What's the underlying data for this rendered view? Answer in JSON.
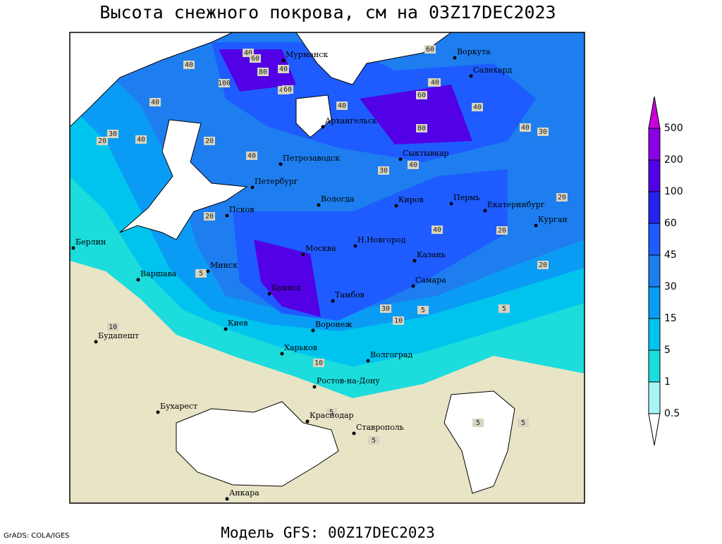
{
  "header": {
    "title": "Высота снежного покрова, см на 03Z17DEC2023"
  },
  "footer": {
    "model": "Модель GFS: 00Z17DEC2023",
    "credit": "GrADS: COLA/IGES"
  },
  "legend": {
    "labels": [
      0.5,
      1,
      5,
      15,
      30,
      45,
      60,
      100,
      200,
      500
    ],
    "colors": [
      "#ffffff",
      "#a8f4f4",
      "#1cdcdc",
      "#00c4ee",
      "#0a9cf4",
      "#1e7ef0",
      "#1e5cff",
      "#2424f0",
      "#5200e6",
      "#8c00e6",
      "#cc00dc"
    ]
  },
  "cities": [
    "Мурманск",
    "Воркута",
    "Салехард",
    "Архангельск",
    "Петрозаводск",
    "Сыктывкар",
    "Петербург",
    "Вологда",
    "Киров",
    "Пермь",
    "Екатеринбург",
    "Курган",
    "Псков",
    "Берлин",
    "Н.Новгород",
    "Казань",
    "Москва",
    "Минск",
    "Варшава",
    "Самара",
    "Брянск",
    "Тамбов",
    "Киев",
    "Воронеж",
    "Будапешт",
    "Харьков",
    "Волгоград",
    "Ростов-на-Дону",
    "Бухарест",
    "Краснодар",
    "Ставрополь",
    "Анкара"
  ],
  "contour_labels": [
    40,
    60,
    80,
    40,
    100,
    40,
    40,
    30,
    20,
    40,
    60,
    40,
    40,
    60,
    80,
    60,
    40,
    40,
    30,
    40,
    40,
    20,
    40,
    30,
    40,
    20,
    20,
    20,
    40,
    20,
    5,
    10,
    30,
    10,
    5,
    5,
    10,
    5,
    5,
    5,
    5
  ]
}
